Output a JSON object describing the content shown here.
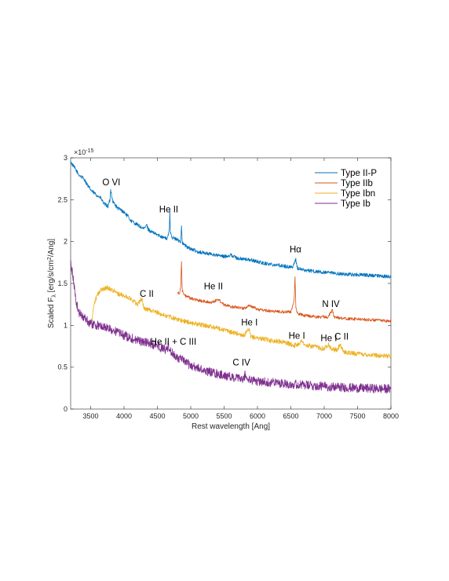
{
  "chart_data": {
    "type": "line",
    "xlabel": "Rest wavelength [Ang]",
    "ylabel": "Scaled F_λ [erg/s/cm²/Ang]",
    "ylabel_parts": {
      "pre": "Scaled F",
      "sub": "λ",
      "mid": " [erg/s/cm",
      "sup": "2",
      "post": "/Ang]"
    },
    "y_exponent": "×10",
    "y_exponent_power": "-15",
    "xlim": [
      3200,
      8000
    ],
    "ylim": [
      0,
      3
    ],
    "x_ticks": [
      3500,
      4000,
      4500,
      5000,
      5500,
      6000,
      6500,
      7000,
      7500,
      8000
    ],
    "y_ticks": [
      0,
      0.5,
      1,
      1.5,
      2,
      2.5,
      3
    ],
    "y_tick_labels": [
      "0",
      "0.5",
      "1",
      "1.5",
      "2",
      "2.5",
      "3"
    ],
    "grid": false,
    "legend_placement": "top-right",
    "series": [
      {
        "name": "Type II-P",
        "color": "#0072BD",
        "noise": 0.022,
        "x": [
          3200,
          3260,
          3320,
          3400,
          3470,
          3520,
          3600,
          3650,
          3700,
          3760,
          3790,
          3800,
          3810,
          3830,
          3860,
          3900,
          3950,
          4000,
          4060,
          4100,
          4200,
          4300,
          4340,
          4360,
          4400,
          4500,
          4600,
          4650,
          4680,
          4686,
          4695,
          4720,
          4800,
          4850,
          4861,
          4875,
          4950,
          5100,
          5300,
          5500,
          5600,
          5700,
          5900,
          6100,
          6300,
          6450,
          6530,
          6560,
          6575,
          6600,
          6700,
          7000,
          7300,
          7600,
          8000
        ],
        "y": [
          2.95,
          2.88,
          2.8,
          2.75,
          2.65,
          2.6,
          2.55,
          2.52,
          2.45,
          2.42,
          2.5,
          2.62,
          2.58,
          2.48,
          2.45,
          2.4,
          2.38,
          2.35,
          2.3,
          2.25,
          2.2,
          2.15,
          2.2,
          2.15,
          2.12,
          2.08,
          2.05,
          2.03,
          2.15,
          2.38,
          2.12,
          2.05,
          2.02,
          2.0,
          2.18,
          1.98,
          1.93,
          1.88,
          1.85,
          1.82,
          1.84,
          1.8,
          1.78,
          1.74,
          1.72,
          1.7,
          1.7,
          1.75,
          1.79,
          1.68,
          1.66,
          1.63,
          1.61,
          1.6,
          1.58
        ]
      },
      {
        "name": "Type IIb",
        "color": "#D95319",
        "noise": 0.018,
        "x": [
          4800,
          4830,
          4850,
          4861,
          4872,
          4900,
          5000,
          5100,
          5300,
          5411,
          5500,
          5600,
          5700,
          5800,
          5876,
          6000,
          6200,
          6400,
          6500,
          6550,
          6563,
          6576,
          6600,
          6700,
          6900,
          7050,
          7100,
          7120,
          7150,
          7300,
          7600,
          8000
        ],
        "y": [
          1.4,
          1.38,
          1.45,
          1.78,
          1.42,
          1.36,
          1.32,
          1.3,
          1.27,
          1.31,
          1.25,
          1.22,
          1.22,
          1.2,
          1.24,
          1.19,
          1.17,
          1.16,
          1.16,
          1.3,
          1.57,
          1.2,
          1.14,
          1.12,
          1.1,
          1.1,
          1.15,
          1.18,
          1.1,
          1.08,
          1.07,
          1.05
        ]
      },
      {
        "name": "Type Ibn",
        "color": "#EDB120",
        "noise": 0.028,
        "x": [
          3520,
          3540,
          3560,
          3600,
          3650,
          3700,
          3750,
          3800,
          3850,
          3900,
          4000,
          4100,
          4200,
          4267,
          4300,
          4400,
          4500,
          4600,
          4700,
          4800,
          5000,
          5200,
          5400,
          5600,
          5800,
          5876,
          5900,
          6000,
          6200,
          6400,
          6550,
          6600,
          6678,
          6700,
          6900,
          7000,
          7065,
          7100,
          7200,
          7235,
          7260,
          7300,
          7500,
          7800,
          8000
        ],
        "y": [
          1.05,
          1.2,
          1.28,
          1.36,
          1.42,
          1.44,
          1.45,
          1.43,
          1.41,
          1.38,
          1.35,
          1.32,
          1.25,
          1.32,
          1.2,
          1.18,
          1.15,
          1.12,
          1.1,
          1.07,
          1.03,
          1.0,
          0.97,
          0.92,
          0.88,
          0.95,
          0.86,
          0.85,
          0.82,
          0.8,
          0.76,
          0.77,
          0.82,
          0.76,
          0.74,
          0.72,
          0.78,
          0.72,
          0.7,
          0.78,
          0.72,
          0.68,
          0.66,
          0.64,
          0.63
        ]
      },
      {
        "name": "Type Ib",
        "color": "#7E2F8E",
        "noise": 0.055,
        "x": [
          3200,
          3240,
          3280,
          3320,
          3400,
          3500,
          3600,
          3700,
          3800,
          3900,
          4000,
          4100,
          4200,
          4300,
          4400,
          4500,
          4600,
          4640,
          4650,
          4660,
          4680,
          4700,
          4800,
          4900,
          5000,
          5200,
          5400,
          5600,
          5800,
          5810,
          5850,
          6000,
          6200,
          6500,
          6800,
          7000,
          7500,
          8000
        ],
        "y": [
          1.75,
          1.55,
          1.3,
          1.15,
          1.1,
          1.02,
          1.0,
          0.98,
          0.95,
          0.92,
          0.88,
          0.85,
          0.82,
          0.8,
          0.78,
          0.75,
          0.72,
          0.7,
          0.72,
          0.76,
          0.72,
          0.68,
          0.62,
          0.57,
          0.52,
          0.46,
          0.42,
          0.38,
          0.35,
          0.42,
          0.35,
          0.33,
          0.32,
          0.3,
          0.28,
          0.27,
          0.25,
          0.24
        ]
      }
    ],
    "annotations": [
      {
        "text": "O VI",
        "x": 3810,
        "y": 2.67
      },
      {
        "text": "He II",
        "x": 4670,
        "y": 2.35
      },
      {
        "text": "Hα",
        "x": 6570,
        "y": 1.87
      },
      {
        "text": "He II",
        "x": 5340,
        "y": 1.43
      },
      {
        "text": "N IV",
        "x": 7100,
        "y": 1.22
      },
      {
        "text": "C II",
        "x": 4340,
        "y": 1.34
      },
      {
        "text": "He I",
        "x": 5880,
        "y": 1.0
      },
      {
        "text": "He I",
        "x": 6590,
        "y": 0.84
      },
      {
        "text": "He I",
        "x": 7070,
        "y": 0.81
      },
      {
        "text": "C II",
        "x": 7260,
        "y": 0.83
      },
      {
        "text": "He II + C III",
        "x": 4740,
        "y": 0.77
      },
      {
        "text": "C IV",
        "x": 5760,
        "y": 0.52
      }
    ]
  }
}
